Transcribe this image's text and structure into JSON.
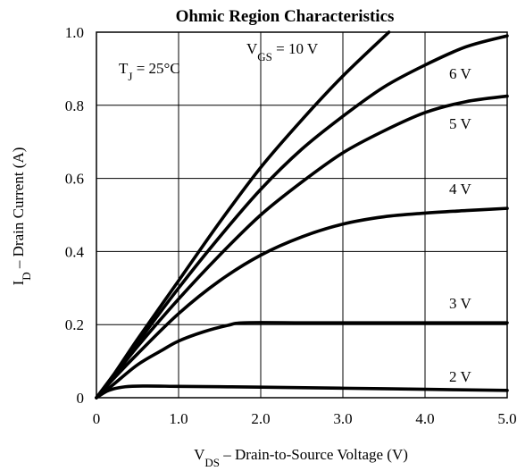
{
  "chart_data": {
    "type": "line",
    "title": "Ohmic Region Characteristics",
    "xlabel": {
      "main": "V",
      "sub": "DS",
      "rest": "  –  Drain-to-Source Voltage (V)"
    },
    "ylabel": {
      "main": "I",
      "sub": "D",
      "rest": " – Drain Current (A)"
    },
    "xlim": [
      0,
      5
    ],
    "ylim": [
      0,
      1
    ],
    "x_ticks": [
      0,
      1,
      2,
      3,
      4,
      5
    ],
    "x_tick_labels": [
      "0",
      "1.0",
      "2.0",
      "3.0",
      "4.0",
      "5.0"
    ],
    "y_ticks": [
      0,
      0.2,
      0.4,
      0.6,
      0.8,
      1.0
    ],
    "y_tick_labels": [
      "0",
      "0.2",
      "0.4",
      "0.6",
      "0.8",
      "1.0"
    ],
    "grid": true,
    "annotation": {
      "main": "T",
      "sub": "J",
      "rest": " = 25°C"
    },
    "series": [
      {
        "name": "V_GS = 10 V",
        "label": {
          "main": "V",
          "sub": "GS",
          "rest": " = 10 V"
        },
        "x": [
          0,
          0.2,
          0.5,
          1.0,
          1.5,
          2.0,
          2.5,
          3.0,
          3.56
        ],
        "y": [
          0,
          0.06,
          0.16,
          0.32,
          0.48,
          0.63,
          0.76,
          0.88,
          1.0
        ]
      },
      {
        "name": "6 V",
        "label": {
          "main": "6 V",
          "sub": "",
          "rest": ""
        },
        "x": [
          0,
          0.2,
          0.5,
          1.0,
          1.5,
          2.0,
          2.5,
          3.0,
          3.5,
          4.0,
          4.5,
          5.0
        ],
        "y": [
          0,
          0.06,
          0.15,
          0.3,
          0.44,
          0.57,
          0.68,
          0.77,
          0.85,
          0.91,
          0.96,
          0.99
        ]
      },
      {
        "name": "5 V",
        "label": {
          "main": "5 V",
          "sub": "",
          "rest": ""
        },
        "x": [
          0,
          0.2,
          0.5,
          1.0,
          1.5,
          2.0,
          2.5,
          3.0,
          3.5,
          4.0,
          4.5,
          5.0
        ],
        "y": [
          0,
          0.055,
          0.14,
          0.27,
          0.39,
          0.5,
          0.59,
          0.67,
          0.73,
          0.78,
          0.81,
          0.825
        ]
      },
      {
        "name": "4 V",
        "label": {
          "main": "4 V",
          "sub": "",
          "rest": ""
        },
        "x": [
          0,
          0.2,
          0.5,
          1.0,
          1.5,
          2.0,
          2.5,
          3.0,
          3.5,
          4.0,
          4.5,
          5.0
        ],
        "y": [
          0,
          0.05,
          0.12,
          0.23,
          0.32,
          0.39,
          0.44,
          0.475,
          0.495,
          0.505,
          0.512,
          0.518
        ]
      },
      {
        "name": "3 V",
        "label": {
          "main": "3 V",
          "sub": "",
          "rest": ""
        },
        "x": [
          0,
          0.2,
          0.5,
          0.8,
          1.0,
          1.3,
          1.6,
          1.8,
          2.5,
          3.0,
          4.0,
          5.0
        ],
        "y": [
          0,
          0.035,
          0.09,
          0.13,
          0.155,
          0.18,
          0.198,
          0.205,
          0.205,
          0.205,
          0.205,
          0.205
        ]
      },
      {
        "name": "2 V",
        "label": {
          "main": "2 V",
          "sub": "",
          "rest": ""
        },
        "x": [
          0,
          0.15,
          0.35,
          0.6,
          1.0,
          1.5,
          2.0,
          3.0,
          4.0,
          5.0
        ],
        "y": [
          0,
          0.02,
          0.03,
          0.032,
          0.031,
          0.03,
          0.029,
          0.026,
          0.023,
          0.02
        ]
      }
    ]
  }
}
